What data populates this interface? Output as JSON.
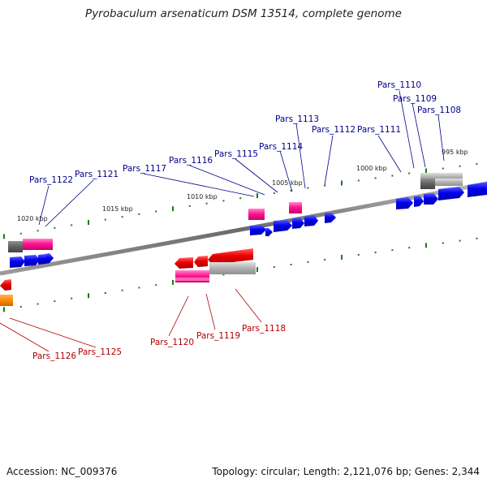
{
  "title": "Pyrobaculum arsenaticum DSM 13514, complete genome",
  "footer": {
    "accession": "Accession: NC_009376",
    "genome_info": "Topology: circular; Length: 2,121,076 bp; Genes: 2,344"
  },
  "colors": {
    "forward_label": "#00008b",
    "reverse_label": "#b00000",
    "cds_forward": "#0000ee",
    "cds_reverse": "#ee0000",
    "gene_pink": "#ff1493",
    "gene_grey": "#999999",
    "gene_orange": "#ff8c00",
    "tick": "#1a7a1a",
    "backbone": "#808080"
  },
  "kbp_labels": [
    "995 kbp",
    "1000 kbp",
    "1005 kbp",
    "1010 kbp",
    "1015 kbp",
    "1020 kbp"
  ],
  "forward_genes": [
    "Pars_1108",
    "Pars_1109",
    "Pars_1110",
    "Pars_1111",
    "Pars_1112",
    "Pars_1113",
    "Pars_1114",
    "Pars_1115",
    "Pars_1116",
    "Pars_1117",
    "Pars_1121",
    "Pars_1122"
  ],
  "reverse_genes": [
    "Pars_1118",
    "Pars_1119",
    "Pars_1120",
    "Pars_1125",
    "Pars_1126"
  ]
}
